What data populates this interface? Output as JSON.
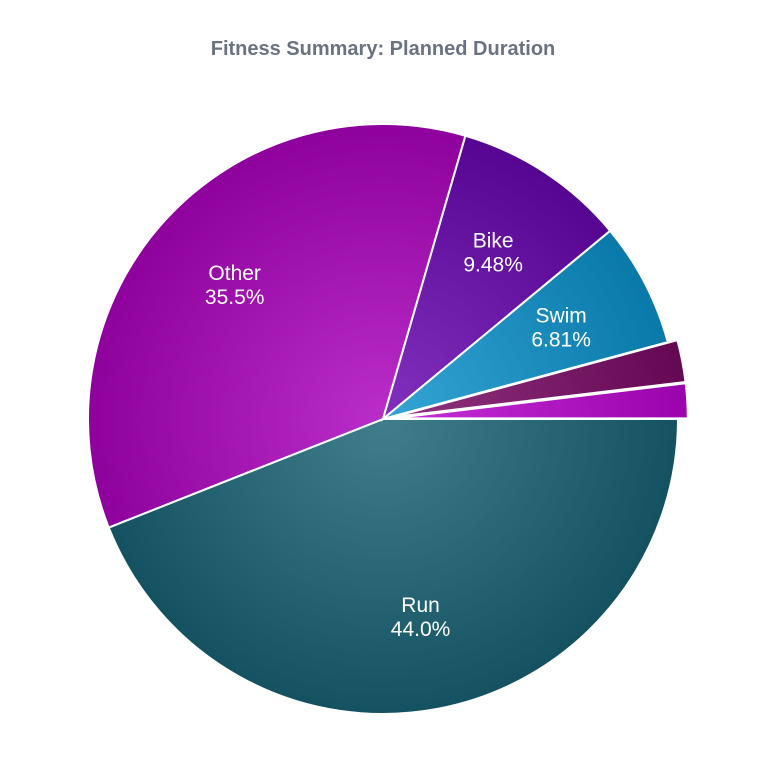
{
  "chart_data": {
    "type": "pie",
    "title": "Fitness Summary: Planned Duration",
    "start_angle_deg": 90,
    "direction": "counterclockwise",
    "slices": [
      {
        "name": "Run",
        "value": 44.0,
        "label_name": "Run",
        "label_value": "44.0%",
        "color": "#2a6878",
        "shown_label": true
      },
      {
        "name": "Other",
        "value": 35.5,
        "label_name": "Other",
        "label_value": "35.5%",
        "color": "#a417b3",
        "shown_label": true
      },
      {
        "name": "Bike",
        "value": 9.48,
        "label_name": "Bike",
        "label_value": "9.48%",
        "color": "#6c1aa8",
        "shown_label": true
      },
      {
        "name": "Swim",
        "value": 6.81,
        "label_name": "Swim",
        "label_value": "6.81%",
        "color": "#1f8fbf",
        "shown_label": true
      },
      {
        "name": "",
        "value": 2.3,
        "label_name": "",
        "label_value": "",
        "color": "#7c1f6b",
        "shown_label": false
      },
      {
        "name": "",
        "value": 1.9,
        "label_name": "",
        "label_value": "",
        "color": "#b21ac4",
        "shown_label": false
      }
    ]
  }
}
